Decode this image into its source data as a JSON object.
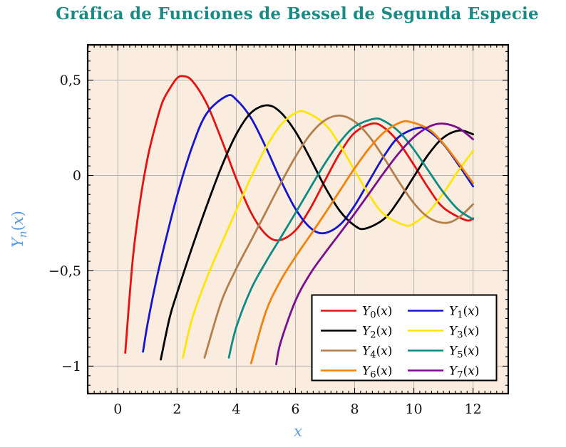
{
  "title": "Gráfica de Funciones de Bessel de Segunda Especie",
  "colors": {
    "title": "#1A8A84",
    "axis_label": "#5A99E0",
    "frame": "#000000",
    "grid": "#B3B3B3",
    "plot_bg": "#FAECDF",
    "page_bg": "#FFFFFF",
    "legend_bg": "#FFFFFF",
    "legend_border": "#000000",
    "tick": "#000000",
    "tick_label": "#111111"
  },
  "axes": {
    "xlabel": "x",
    "ylabel": {
      "base": "Y",
      "sub": "n",
      "open": "(",
      "var": "x",
      "close": ")"
    },
    "xticks": {
      "values": [
        0,
        2,
        4,
        6,
        8,
        10,
        12
      ],
      "labels": [
        "0",
        "2",
        "4",
        "6",
        "8",
        "10",
        "12"
      ]
    },
    "yticks": {
      "values": [
        0.5,
        0,
        -0.5,
        -1
      ],
      "labels": [
        "0,5",
        "0",
        "−0,5",
        "−1"
      ]
    }
  },
  "chart_data": {
    "type": "line",
    "title": "Gráfica de Funciones de Bessel de Segunda Especie",
    "xlabel": "x",
    "ylabel": "Y_n(x)",
    "xlim": [
      -1.02,
      13.19
    ],
    "ylim": [
      -1.144,
      0.685
    ],
    "grid": true,
    "minor_x_step": 0.2,
    "minor_y_step": 0.05,
    "major_x_step": 2,
    "major_y_step": 0.5,
    "legend": {
      "position": "south east",
      "columns": 2
    },
    "series": [
      {
        "order": 0,
        "name": "Y0(x)",
        "base": "Y",
        "sub": "0",
        "open": "(",
        "var": "x",
        "close": ")",
        "color": "#E51212",
        "points": [
          [
            0.25,
            -0.93
          ],
          [
            0.5,
            -0.445
          ],
          [
            0.75,
            -0.137
          ],
          [
            1,
            0.088
          ],
          [
            1.25,
            0.25
          ],
          [
            1.5,
            0.382
          ],
          [
            1.75,
            0.455
          ],
          [
            2,
            0.51
          ],
          [
            2.2,
            0.521
          ],
          [
            2.5,
            0.498
          ],
          [
            3,
            0.377
          ],
          [
            3.5,
            0.189
          ],
          [
            4,
            -0.017
          ],
          [
            4.5,
            -0.195
          ],
          [
            5,
            -0.309
          ],
          [
            5.45,
            -0.34
          ],
          [
            6,
            -0.288
          ],
          [
            6.5,
            -0.173
          ],
          [
            7,
            -0.026
          ],
          [
            7.5,
            0.117
          ],
          [
            8,
            0.224
          ],
          [
            8.6,
            0.272
          ],
          [
            9,
            0.25
          ],
          [
            9.5,
            0.171
          ],
          [
            10,
            0.056
          ],
          [
            10.5,
            -0.068
          ],
          [
            11,
            -0.169
          ],
          [
            11.75,
            -0.234
          ],
          [
            12,
            -0.225
          ]
        ]
      },
      {
        "order": 1,
        "name": "Y1(x)",
        "base": "Y",
        "sub": "1",
        "open": "(",
        "var": "x",
        "close": ")",
        "color": "#1515CE",
        "points": [
          [
            0.85,
            -0.924
          ],
          [
            1,
            -0.781
          ],
          [
            1.25,
            -0.585
          ],
          [
            1.5,
            -0.412
          ],
          [
            2,
            -0.107
          ],
          [
            2.5,
            0.146
          ],
          [
            3,
            0.325
          ],
          [
            3.68,
            0.417
          ],
          [
            4,
            0.398
          ],
          [
            4.5,
            0.301
          ],
          [
            5,
            0.148
          ],
          [
            5.5,
            -0.024
          ],
          [
            6,
            -0.175
          ],
          [
            6.5,
            -0.274
          ],
          [
            6.95,
            -0.303
          ],
          [
            7.5,
            -0.259
          ],
          [
            8,
            -0.158
          ],
          [
            8.5,
            -0.026
          ],
          [
            9,
            0.104
          ],
          [
            9.5,
            0.203
          ],
          [
            10.15,
            0.25
          ],
          [
            10.5,
            0.234
          ],
          [
            11,
            0.164
          ],
          [
            11.5,
            0.058
          ],
          [
            12,
            -0.057
          ]
        ]
      },
      {
        "order": 2,
        "name": "Y2(x)",
        "base": "Y",
        "sub": "2",
        "open": "(",
        "var": "x",
        "close": ")",
        "color": "#000000",
        "points": [
          [
            1.45,
            -0.965
          ],
          [
            1.75,
            -0.745
          ],
          [
            2,
            -0.617
          ],
          [
            2.5,
            -0.381
          ],
          [
            3,
            -0.16
          ],
          [
            3.5,
            0.045
          ],
          [
            4,
            0.216
          ],
          [
            4.5,
            0.329
          ],
          [
            5.05,
            0.368
          ],
          [
            5.5,
            0.331
          ],
          [
            6,
            0.23
          ],
          [
            6.5,
            0.089
          ],
          [
            7,
            -0.061
          ],
          [
            7.5,
            -0.186
          ],
          [
            8,
            -0.263
          ],
          [
            8.35,
            -0.279
          ],
          [
            9,
            -0.227
          ],
          [
            9.5,
            -0.128
          ],
          [
            10,
            -0.006
          ],
          [
            10.5,
            0.112
          ],
          [
            11,
            0.199
          ],
          [
            11.55,
            0.236
          ],
          [
            12,
            0.216
          ]
        ]
      },
      {
        "order": 3,
        "name": "Y3(x)",
        "base": "Y",
        "sub": "3",
        "open": "(",
        "var": "x",
        "close": ")",
        "color": "#FFE60A",
        "points": [
          [
            2.2,
            -0.955
          ],
          [
            2.5,
            -0.756
          ],
          [
            3,
            -0.539
          ],
          [
            3.5,
            -0.358
          ],
          [
            4,
            -0.182
          ],
          [
            4.5,
            -0.009
          ],
          [
            5,
            0.146
          ],
          [
            5.5,
            0.264
          ],
          [
            6,
            0.328
          ],
          [
            6.35,
            0.332
          ],
          [
            7,
            0.268
          ],
          [
            7.5,
            0.16
          ],
          [
            8,
            0.027
          ],
          [
            8.5,
            -0.104
          ],
          [
            9,
            -0.205
          ],
          [
            9.7,
            -0.261
          ],
          [
            10,
            -0.251
          ],
          [
            10.5,
            -0.191
          ],
          [
            11,
            -0.092
          ],
          [
            11.5,
            0.024
          ],
          [
            12,
            0.129
          ]
        ]
      },
      {
        "order": 4,
        "name": "Y4(x)",
        "base": "Y",
        "sub": "4",
        "open": "(",
        "var": "x",
        "close": ")",
        "color": "#B27F4D",
        "points": [
          [
            2.93,
            -0.955
          ],
          [
            3,
            -0.917
          ],
          [
            3.5,
            -0.66
          ],
          [
            4,
            -0.489
          ],
          [
            4.5,
            -0.341
          ],
          [
            5,
            -0.192
          ],
          [
            5.5,
            -0.042
          ],
          [
            6,
            0.098
          ],
          [
            6.5,
            0.215
          ],
          [
            7,
            0.29
          ],
          [
            7.5,
            0.314
          ],
          [
            8,
            0.283
          ],
          [
            8.5,
            0.203
          ],
          [
            9,
            0.09
          ],
          [
            9.5,
            -0.034
          ],
          [
            10,
            -0.145
          ],
          [
            10.5,
            -0.221
          ],
          [
            11.05,
            -0.249
          ],
          [
            11.5,
            -0.223
          ],
          [
            12,
            -0.151
          ]
        ]
      },
      {
        "order": 5,
        "name": "Y5(x)",
        "base": "Y",
        "sub": "5",
        "open": "(",
        "var": "x",
        "close": ")",
        "color": "#0E8B82",
        "points": [
          [
            3.75,
            -0.955
          ],
          [
            4,
            -0.796
          ],
          [
            4.5,
            -0.596
          ],
          [
            5,
            -0.454
          ],
          [
            5.5,
            -0.326
          ],
          [
            6,
            -0.197
          ],
          [
            6.5,
            -0.065
          ],
          [
            7,
            0.064
          ],
          [
            7.5,
            0.175
          ],
          [
            8,
            0.256
          ],
          [
            8.65,
            0.297
          ],
          [
            9,
            0.285
          ],
          [
            9.5,
            0.229
          ],
          [
            10,
            0.136
          ],
          [
            10.5,
            0.023
          ],
          [
            11,
            -0.089
          ],
          [
            11.5,
            -0.179
          ],
          [
            12,
            -0.23
          ]
        ]
      },
      {
        "order": 6,
        "name": "Y6(x)",
        "base": "Y",
        "sub": "6",
        "open": "(",
        "var": "x",
        "close": ")",
        "color": "#F5820A",
        "points": [
          [
            4.5,
            -0.985
          ],
          [
            5,
            -0.715
          ],
          [
            5.5,
            -0.551
          ],
          [
            6,
            -0.427
          ],
          [
            6.5,
            -0.314
          ],
          [
            7,
            -0.199
          ],
          [
            7.5,
            -0.08
          ],
          [
            8,
            0.038
          ],
          [
            8.5,
            0.144
          ],
          [
            9,
            0.227
          ],
          [
            9.5,
            0.275
          ],
          [
            9.85,
            0.282
          ],
          [
            10.5,
            0.243
          ],
          [
            11,
            0.167
          ],
          [
            11.5,
            0.067
          ],
          [
            12,
            -0.04
          ]
        ]
      },
      {
        "order": 7,
        "name": "Y7(x)",
        "base": "Y",
        "sub": "7",
        "open": "(",
        "var": "x",
        "close": ")",
        "color": "#7B0E8F",
        "points": [
          [
            5.35,
            -0.99
          ],
          [
            5.5,
            -0.875
          ],
          [
            6,
            -0.657
          ],
          [
            6.5,
            -0.515
          ],
          [
            7,
            -0.406
          ],
          [
            7.5,
            -0.304
          ],
          [
            8,
            -0.2
          ],
          [
            8.5,
            -0.092
          ],
          [
            9,
            0.017
          ],
          [
            9.5,
            0.118
          ],
          [
            10,
            0.201
          ],
          [
            10.5,
            0.255
          ],
          [
            10.95,
            0.272
          ],
          [
            11.5,
            0.249
          ],
          [
            12,
            0.19
          ]
        ]
      }
    ]
  }
}
